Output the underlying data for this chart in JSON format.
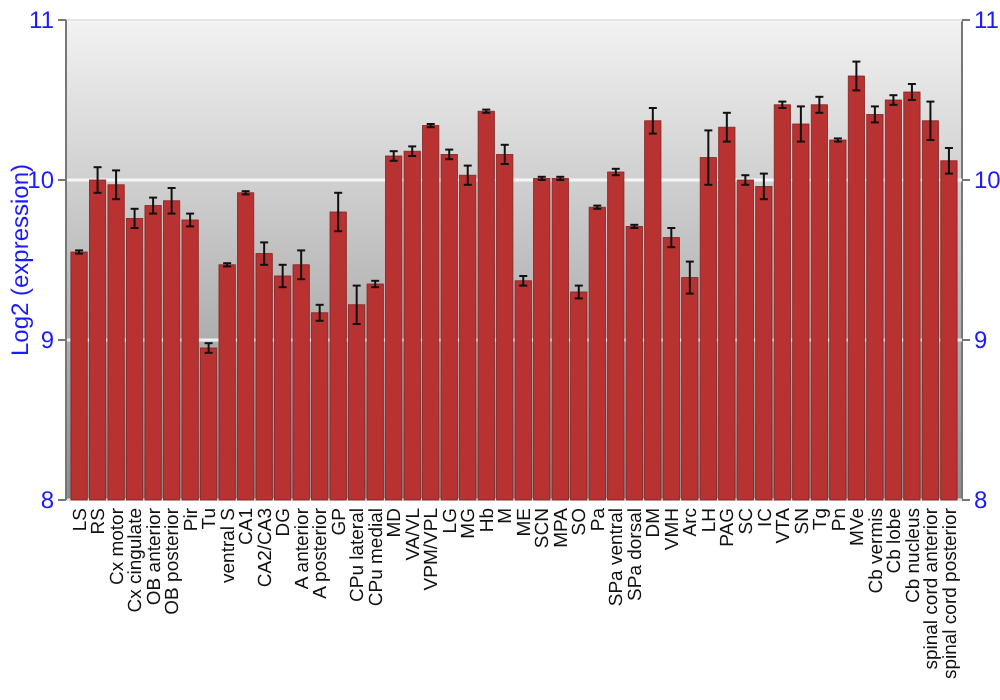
{
  "chart_data": {
    "type": "bar",
    "ylabel": "Log2 (expression)",
    "categories": [
      "LS",
      "RS",
      "Cx motor",
      "Cx cingulate",
      "OB anterior",
      "OB posterior",
      "Pir",
      "Tu",
      "ventral S",
      "CA1",
      "CA2/CA3",
      "DG",
      "A anterior",
      "A posterior",
      "GP",
      "CPu lateral",
      "CPu medial",
      "MD",
      "VA/VL",
      "VPM/VPL",
      "LG",
      "MG",
      "Hb",
      "M",
      "ME",
      "SCN",
      "MPA",
      "SO",
      "Pa",
      "SPa ventral",
      "SPa dorsal",
      "DM",
      "VMH",
      "Arc",
      "LH",
      "PAG",
      "SC",
      "IC",
      "VTA",
      "SN",
      "Tg",
      "Pn",
      "MVe",
      "Cb vermis",
      "Cb lobe",
      "Cb nucleus",
      "spinal cord anterior",
      "spinal cord posterior"
    ],
    "values": [
      9.55,
      10.0,
      9.97,
      9.76,
      9.84,
      9.87,
      9.75,
      8.95,
      9.47,
      9.92,
      9.54,
      9.4,
      9.47,
      9.17,
      9.8,
      9.22,
      9.35,
      10.15,
      10.18,
      10.34,
      10.16,
      10.03,
      10.43,
      10.16,
      9.37,
      10.01,
      10.01,
      9.3,
      9.83,
      10.05,
      9.71,
      10.37,
      9.64,
      9.39,
      10.14,
      10.33,
      10.0,
      9.96,
      10.47,
      10.35,
      10.47,
      10.25,
      10.65,
      10.41,
      10.5,
      10.55,
      10.37,
      10.12
    ],
    "errors": [
      0.01,
      0.08,
      0.09,
      0.06,
      0.05,
      0.08,
      0.04,
      0.03,
      0.01,
      0.01,
      0.07,
      0.07,
      0.09,
      0.05,
      0.12,
      0.12,
      0.02,
      0.03,
      0.03,
      0.01,
      0.03,
      0.06,
      0.01,
      0.06,
      0.03,
      0.01,
      0.01,
      0.04,
      0.01,
      0.02,
      0.01,
      0.08,
      0.06,
      0.1,
      0.17,
      0.09,
      0.03,
      0.08,
      0.02,
      0.11,
      0.05,
      0.01,
      0.09,
      0.05,
      0.03,
      0.05,
      0.12,
      0.08
    ],
    "color": "#b83232",
    "ylim": [
      8,
      11
    ],
    "yticks": [
      8,
      9,
      10,
      11
    ],
    "y2lim": [
      8,
      11
    ],
    "y2ticks": [
      8,
      9,
      10,
      11
    ],
    "grid": "y"
  }
}
